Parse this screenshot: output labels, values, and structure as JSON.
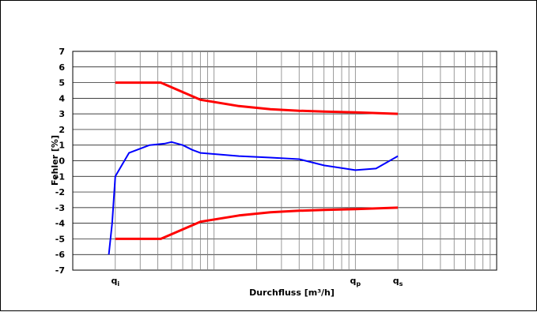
{
  "chart_data": {
    "type": "line",
    "ylabel": "Fehler [%]",
    "xlabel": "Durchfluss [m³/h]",
    "ylim": [
      -7,
      7
    ],
    "yticks": [
      7,
      6,
      5,
      4,
      3,
      2,
      1,
      0,
      -1,
      -2,
      -3,
      -4,
      -5,
      -6,
      -7
    ],
    "x_scale": "log",
    "xlim": [
      1,
      1000
    ],
    "grid": true,
    "x_markers": [
      {
        "base": "q",
        "sub": "i",
        "x": 2
      },
      {
        "base": "q",
        "sub": "p",
        "x": 100
      },
      {
        "base": "q",
        "sub": "s",
        "x": 200
      }
    ],
    "series": [
      {
        "color": "#ff0000",
        "points": [
          [
            2,
            5
          ],
          [
            4.2,
            5
          ],
          [
            8,
            3.9
          ],
          [
            15,
            3.5
          ],
          [
            25,
            3.3
          ],
          [
            40,
            3.2
          ],
          [
            60,
            3.15
          ],
          [
            100,
            3.1
          ],
          [
            200,
            3.0
          ]
        ]
      },
      {
        "color": "#ff0000",
        "points": [
          [
            2,
            -5
          ],
          [
            4.2,
            -5
          ],
          [
            8,
            -3.9
          ],
          [
            15,
            -3.5
          ],
          [
            25,
            -3.3
          ],
          [
            40,
            -3.2
          ],
          [
            60,
            -3.15
          ],
          [
            100,
            -3.1
          ],
          [
            200,
            -3.0
          ]
        ]
      },
      {
        "color": "#0000ff",
        "points": [
          [
            1.8,
            -6
          ],
          [
            1.9,
            -4
          ],
          [
            2,
            -1
          ],
          [
            2.5,
            0.5
          ],
          [
            3.5,
            1.0
          ],
          [
            4.5,
            1.1
          ],
          [
            5,
            1.2
          ],
          [
            6,
            1.0
          ],
          [
            7,
            0.7
          ],
          [
            8,
            0.5
          ],
          [
            15,
            0.3
          ],
          [
            25,
            0.2
          ],
          [
            40,
            0.1
          ],
          [
            60,
            -0.3
          ],
          [
            100,
            -0.6
          ],
          [
            140,
            -0.5
          ],
          [
            200,
            0.3
          ]
        ]
      }
    ]
  }
}
